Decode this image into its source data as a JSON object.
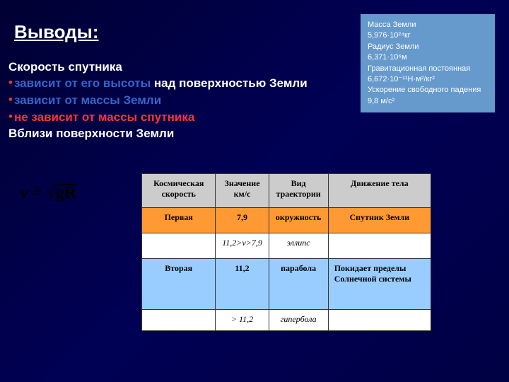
{
  "title": "Выводы:",
  "infoBox": {
    "line1": "Масса Земли",
    "line2": "5,976·10²⁴кг",
    "line3": "Радиус Земли",
    "line4": "6,371·10⁶м",
    "line5": "Гравитационная постоянная",
    "line6": "6,672·10⁻¹¹Н·м²/кг²",
    "line7": "Ускорение свободного падения",
    "line8": "9,8 м/с²"
  },
  "content": {
    "heading1": "Скорость спутника",
    "bullet1_blue": "зависит от его высоты",
    "bullet1_white": " над поверхностью Земли",
    "bullet2": "зависит от массы Земли",
    "bullet3": "не зависит от массы спутника",
    "heading2": "Вблизи поверхности Земли"
  },
  "formula": {
    "prefix": "v = ",
    "radicand": "gR"
  },
  "table": {
    "headers": [
      "Космическая скорость",
      "Значение км/с",
      "Вид траектории",
      "Движение тела"
    ],
    "rows": [
      {
        "cells": [
          "Первая",
          "7,9",
          "окружность",
          "Спутник Земли"
        ],
        "bg": "#ff9933",
        "class": "row-first"
      },
      {
        "cells": [
          "",
          "11,2>v>7,9",
          "эллипс",
          ""
        ],
        "bg": "#ffffff",
        "class": "row-ellipse"
      },
      {
        "cells": [
          "Вторая",
          "11,2",
          "парабола",
          "Покидает пределы Солнечной системы"
        ],
        "bg": "#99ccff",
        "class": "row-second"
      },
      {
        "cells": [
          "",
          "> 11,2",
          "гипербола",
          ""
        ],
        "bg": "#ffffff",
        "class": "row-hyper"
      }
    ],
    "header_bg": "#cccccc"
  }
}
